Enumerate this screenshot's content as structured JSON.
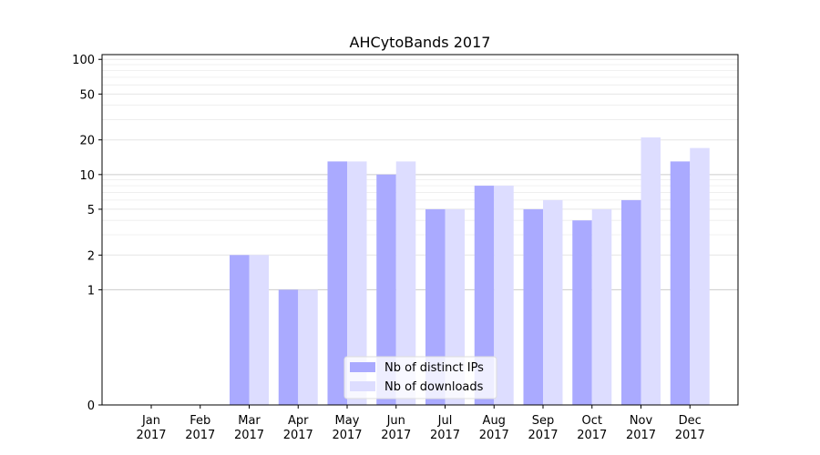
{
  "chart_data": {
    "type": "bar",
    "title": "AHCytoBands 2017",
    "xlabel": "",
    "ylabel": "",
    "yscale": "symlog",
    "ylim": [
      0,
      110
    ],
    "categories": [
      [
        "Jan",
        "2017"
      ],
      [
        "Feb",
        "2017"
      ],
      [
        "Mar",
        "2017"
      ],
      [
        "Apr",
        "2017"
      ],
      [
        "May",
        "2017"
      ],
      [
        "Jun",
        "2017"
      ],
      [
        "Jul",
        "2017"
      ],
      [
        "Aug",
        "2017"
      ],
      [
        "Sep",
        "2017"
      ],
      [
        "Oct",
        "2017"
      ],
      [
        "Nov",
        "2017"
      ],
      [
        "Dec",
        "2017"
      ]
    ],
    "yticks": [
      0,
      1,
      2,
      5,
      10,
      20,
      50,
      100
    ],
    "series": [
      {
        "name": "Nb of distinct IPs",
        "color": "#aaaaff",
        "values": [
          0,
          0,
          2,
          1,
          13,
          10,
          5,
          8,
          5,
          4,
          6,
          13
        ]
      },
      {
        "name": "Nb of downloads",
        "color": "#ddddff",
        "values": [
          0,
          0,
          2,
          1,
          13,
          13,
          5,
          8,
          6,
          5,
          21,
          17
        ]
      }
    ],
    "grid": true,
    "legend_position": "lower center"
  }
}
